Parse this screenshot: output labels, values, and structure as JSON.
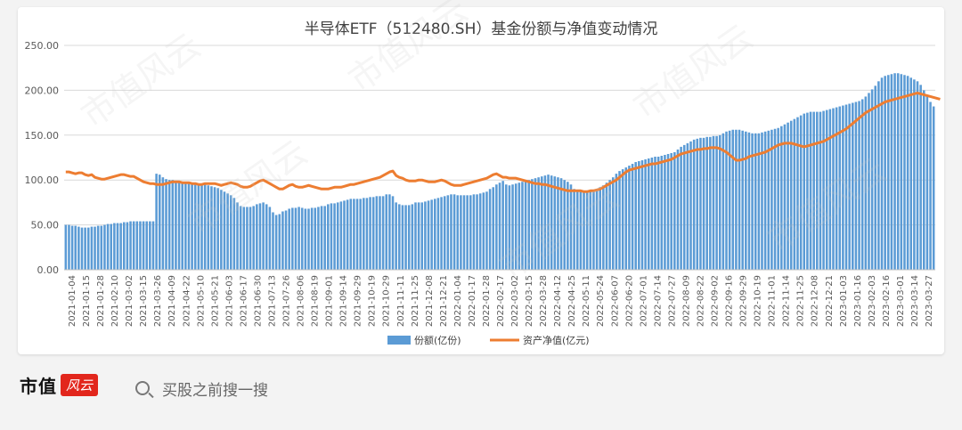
{
  "chart_data": {
    "type": "bar+line",
    "title": "半导体ETF（512480.SH）基金份额与净值变动情况",
    "xlabel": "",
    "ylabel": "",
    "ylim": [
      0,
      250
    ],
    "yticks": [
      "0.00",
      "50.00",
      "100.00",
      "150.00",
      "200.00",
      "250.00"
    ],
    "grid": true,
    "legend_position": "bottom",
    "xtick_labels": [
      "2021-01-04",
      "2021-01-15",
      "2021-01-28",
      "2021-02-10",
      "2021-03-02",
      "2021-03-15",
      "2021-03-26",
      "2021-04-09",
      "2021-04-22",
      "2021-05-10",
      "2021-05-21",
      "2021-06-03",
      "2021-06-17",
      "2021-06-30",
      "2021-07-13",
      "2021-07-26",
      "2021-08-06",
      "2021-08-19",
      "2021-09-01",
      "2021-09-14",
      "2021-09-29",
      "2021-10-19",
      "2021-10-29",
      "2021-11-11",
      "2021-11-25",
      "2021-12-08",
      "2021-12-21",
      "2022-01-04",
      "2022-01-17",
      "2022-01-28",
      "2022-02-17",
      "2022-03-02",
      "2022-03-15",
      "2022-03-28",
      "2022-04-12",
      "2022-04-25",
      "2022-05-11",
      "2022-05-24",
      "2022-06-07",
      "2022-06-20",
      "2022-07-01",
      "2022-07-14",
      "2022-07-27",
      "2022-08-09",
      "2022-08-22",
      "2022-09-02",
      "2022-09-16",
      "2022-09-29",
      "2022-10-19",
      "2022-11-01",
      "2022-11-14",
      "2022-11-25",
      "2022-12-08",
      "2022-12-21",
      "2023-01-03",
      "2023-01-16",
      "2023-02-03",
      "2023-02-16",
      "2023-03-01",
      "2023-03-14",
      "2023-03-27"
    ],
    "series": [
      {
        "name": "份额(亿份)",
        "type": "bar",
        "color": "#5b9bd5",
        "values": [
          50,
          50,
          49,
          49,
          48,
          47,
          47,
          47,
          48,
          48,
          49,
          49,
          50,
          51,
          51,
          52,
          52,
          52,
          53,
          53,
          54,
          54,
          54,
          54,
          54,
          54,
          54,
          54,
          107,
          106,
          103,
          101,
          100,
          100,
          99,
          98,
          98,
          97,
          96,
          96,
          96,
          95,
          95,
          95,
          94,
          93,
          92,
          91,
          89,
          87,
          85,
          83,
          80,
          75,
          71,
          70,
          70,
          70,
          71,
          73,
          74,
          75,
          73,
          70,
          64,
          61,
          62,
          65,
          66,
          68,
          69,
          69,
          70,
          69,
          68,
          68,
          69,
          69,
          70,
          71,
          71,
          73,
          74,
          74,
          75,
          76,
          77,
          78,
          79,
          79,
          79,
          79,
          80,
          80,
          81,
          81,
          82,
          82,
          82,
          84,
          84,
          82,
          75,
          73,
          72,
          72,
          72,
          73,
          75,
          75,
          75,
          76,
          77,
          78,
          79,
          80,
          81,
          82,
          83,
          84,
          84,
          83,
          83,
          83,
          83,
          83,
          84,
          84,
          85,
          86,
          87,
          90,
          92,
          95,
          97,
          99,
          95,
          94,
          95,
          96,
          97,
          98,
          99,
          100,
          101,
          102,
          103,
          104,
          105,
          106,
          105,
          104,
          103,
          102,
          100,
          98,
          95,
          90,
          88,
          87,
          87,
          87,
          88,
          89,
          90,
          92,
          94,
          97,
          100,
          103,
          107,
          110,
          112,
          114,
          116,
          118,
          120,
          121,
          122,
          123,
          124,
          125,
          126,
          126,
          127,
          128,
          129,
          130,
          131,
          134,
          137,
          139,
          141,
          143,
          145,
          146,
          147,
          147,
          148,
          148,
          149,
          149,
          150,
          152,
          154,
          155,
          156,
          156,
          156,
          155,
          154,
          153,
          152,
          152,
          152,
          153,
          154,
          155,
          156,
          157,
          158,
          160,
          162,
          164,
          166,
          168,
          170,
          172,
          174,
          175,
          176,
          176,
          176,
          176,
          177,
          178,
          179,
          180,
          181,
          182,
          183,
          184,
          185,
          186,
          187,
          188,
          190,
          193,
          197,
          201,
          205,
          210,
          214,
          216,
          217,
          218,
          219,
          219,
          218,
          217,
          216,
          214,
          212,
          210,
          206,
          200,
          195,
          187,
          182
        ]
      },
      {
        "name": "资产净值(亿元)",
        "type": "line",
        "color": "#ed7d31",
        "values": [
          109,
          109,
          108,
          107,
          108,
          108,
          106,
          105,
          106,
          103,
          102,
          101,
          101,
          102,
          103,
          104,
          105,
          106,
          106,
          105,
          104,
          104,
          102,
          100,
          98,
          97,
          96,
          96,
          95,
          95,
          95,
          96,
          97,
          98,
          98,
          98,
          97,
          97,
          97,
          96,
          96,
          95,
          95,
          96,
          96,
          96,
          96,
          95,
          94,
          95,
          96,
          97,
          96,
          95,
          93,
          92,
          92,
          93,
          95,
          97,
          99,
          100,
          98,
          96,
          94,
          92,
          90,
          90,
          92,
          94,
          95,
          93,
          92,
          92,
          93,
          94,
          93,
          92,
          91,
          90,
          90,
          90,
          91,
          92,
          92,
          92,
          93,
          94,
          95,
          95,
          96,
          97,
          98,
          99,
          100,
          101,
          102,
          103,
          105,
          107,
          109,
          110,
          105,
          103,
          102,
          100,
          99,
          99,
          99,
          100,
          100,
          99,
          98,
          98,
          98,
          99,
          100,
          99,
          97,
          95,
          94,
          94,
          94,
          95,
          96,
          97,
          98,
          99,
          100,
          101,
          102,
          104,
          106,
          107,
          105,
          103,
          103,
          102,
          102,
          102,
          101,
          100,
          99,
          98,
          97,
          96,
          96,
          95,
          95,
          94,
          93,
          92,
          91,
          90,
          89,
          88,
          88,
          88,
          88,
          88,
          87,
          87,
          88,
          88,
          89,
          90,
          92,
          94,
          96,
          98,
          100,
          103,
          106,
          109,
          111,
          112,
          113,
          114,
          115,
          116,
          117,
          118,
          118,
          119,
          120,
          121,
          122,
          123,
          125,
          127,
          129,
          130,
          131,
          132,
          133,
          134,
          134,
          135,
          135,
          136,
          136,
          136,
          135,
          133,
          131,
          128,
          125,
          122,
          122,
          123,
          124,
          126,
          127,
          128,
          129,
          130,
          131,
          133,
          135,
          137,
          139,
          140,
          141,
          141,
          141,
          140,
          139,
          138,
          137,
          138,
          139,
          140,
          141,
          142,
          143,
          145,
          147,
          149,
          151,
          153,
          155,
          157,
          160,
          163,
          166,
          169,
          172,
          175,
          177,
          179,
          181,
          183,
          185,
          187,
          188,
          189,
          190,
          191,
          192,
          193,
          194,
          195,
          196,
          197,
          196,
          195,
          194,
          193,
          192,
          191,
          190
        ]
      }
    ]
  },
  "watermark_text": "市值风云",
  "footer": {
    "logo_text": "市值",
    "logo_badge": "风云",
    "search_placeholder": "买股之前搜一搜"
  }
}
